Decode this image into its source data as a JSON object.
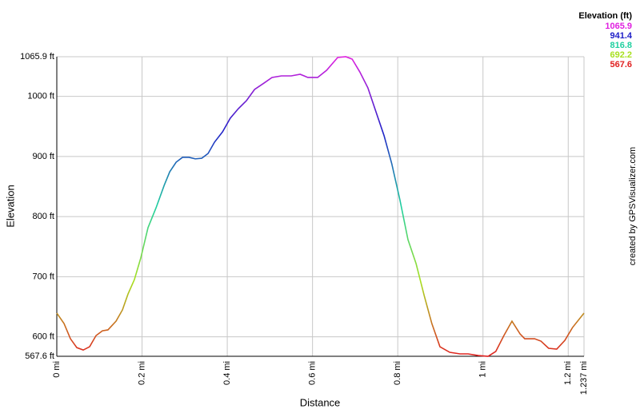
{
  "chart_data": {
    "type": "line",
    "x_label": "Distance",
    "y_label": "Elevation",
    "credit": "created by GPSVisualizer.com",
    "legend_title": "Elevation (ft)",
    "color_scale": [
      {
        "value": 1065.9,
        "color": "#e020e0"
      },
      {
        "value": 941.4,
        "color": "#2020c8"
      },
      {
        "value": 816.8,
        "color": "#20d0a0"
      },
      {
        "value": 692.2,
        "color": "#a8e020"
      },
      {
        "value": 567.6,
        "color": "#e02020"
      }
    ],
    "xlim": [
      0,
      1.237
    ],
    "ylim": [
      567.6,
      1065.9
    ],
    "xticks": [
      {
        "value": 0,
        "label": "0 mi"
      },
      {
        "value": 0.2,
        "label": "0.2 mi"
      },
      {
        "value": 0.4,
        "label": "0.4 mi"
      },
      {
        "value": 0.6,
        "label": "0.6 mi"
      },
      {
        "value": 0.8,
        "label": "0.8 mi"
      },
      {
        "value": 1,
        "label": "1 mi"
      },
      {
        "value": 1.2,
        "label": "1.2 mi"
      },
      {
        "value": 1.237,
        "label": "1.237 mi"
      }
    ],
    "yticks": [
      {
        "value": 567.6,
        "label": "567.6 ft"
      },
      {
        "value": 600,
        "label": "600 ft"
      },
      {
        "value": 700,
        "label": "700 ft"
      },
      {
        "value": 800,
        "label": "800 ft"
      },
      {
        "value": 900,
        "label": "900 ft"
      },
      {
        "value": 1000,
        "label": "1000 ft"
      },
      {
        "value": 1065.9,
        "label": "1065.9 ft"
      }
    ],
    "grid": true,
    "x": [
      0,
      0.017,
      0.032,
      0.047,
      0.062,
      0.077,
      0.092,
      0.107,
      0.12,
      0.139,
      0.154,
      0.167,
      0.182,
      0.197,
      0.214,
      0.233,
      0.252,
      0.265,
      0.28,
      0.295,
      0.31,
      0.325,
      0.34,
      0.355,
      0.37,
      0.389,
      0.407,
      0.426,
      0.445,
      0.464,
      0.486,
      0.505,
      0.527,
      0.55,
      0.571,
      0.589,
      0.612,
      0.633,
      0.659,
      0.678,
      0.693,
      0.711,
      0.73,
      0.749,
      0.768,
      0.786,
      0.805,
      0.824,
      0.843,
      0.862,
      0.88,
      0.899,
      0.922,
      0.946,
      0.965,
      0.989,
      1.012,
      1.03,
      1.049,
      1.068,
      1.087,
      1.098,
      1.121,
      1.136,
      1.154,
      1.173,
      1.192,
      1.21,
      1.237
    ],
    "values": [
      639.4,
      622,
      596.8,
      582,
      578,
      583.5,
      602,
      610,
      611.5,
      626,
      644.7,
      671,
      695,
      731,
      781.5,
      814.8,
      852,
      874.5,
      890.5,
      898.5,
      898.5,
      896,
      897,
      905,
      923.7,
      941,
      963.6,
      979.5,
      992.8,
      1011.4,
      1022,
      1031.4,
      1034,
      1034,
      1036.7,
      1031.4,
      1031.4,
      1043.3,
      1064.6,
      1065.9,
      1061.9,
      1040.6,
      1014,
      974,
      934.3,
      887.8,
      828,
      761.6,
      721.7,
      668.6,
      622,
      583.5,
      574.2,
      571.6,
      571.6,
      568.9,
      567.6,
      575.6,
      602,
      626,
      604.8,
      596.8,
      596.8,
      592.8,
      580.9,
      579.5,
      594,
      615.4,
      639.4
    ]
  }
}
